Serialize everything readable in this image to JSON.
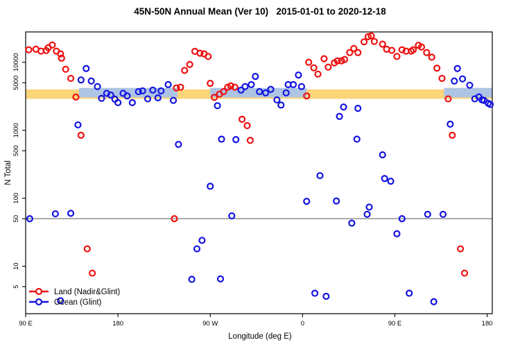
{
  "chart_data": {
    "type": "scatter",
    "title": "45N-50N Annual Mean (Ver 10)   2015-01-01 to 2020-12-18",
    "xlabel": "Longitude (deg E)",
    "ylabel": "N Total",
    "x_axis": {
      "note": "longitude axis spans 450 deg, from 90E eastward through 180, 90W, 0, 90E to 180",
      "range_deg": [
        0,
        455
      ],
      "ticks": [
        {
          "d": 0,
          "label": "90 E"
        },
        {
          "d": 90,
          "label": "180"
        },
        {
          "d": 180,
          "label": "90 W"
        },
        {
          "d": 270,
          "label": "0"
        },
        {
          "d": 360,
          "label": "90 E"
        },
        {
          "d": 450,
          "label": "180"
        }
      ]
    },
    "y_axis": {
      "scale": "log",
      "range": [
        2,
        28000
      ],
      "ticks": [
        5,
        10,
        50,
        100,
        500,
        1000,
        5000,
        10000
      ]
    },
    "reference_line": {
      "value": 50,
      "color": "#999999"
    },
    "bands": {
      "orange": {
        "color": "#FAD57A",
        "value_low": 2900,
        "value_high": 4000,
        "segments_deg": [
          [
            0,
            455
          ]
        ]
      },
      "blue": {
        "color": "#ADC4E4",
        "value_low": 3050,
        "value_high": 4200,
        "segments_deg": [
          [
            52,
            148
          ],
          [
            180,
            274
          ],
          [
            408,
            455
          ]
        ]
      }
    },
    "legend": [
      {
        "label": "Land (Nadir&Glint)",
        "color": "#EE1111"
      },
      {
        "label": "Ocean (Glint)",
        "color": "#1414E1"
      }
    ],
    "series": [
      {
        "name": "Land (Nadir&Glint)",
        "color": "#EE1111",
        "points": [
          [
            3,
            15300
          ],
          [
            10,
            15600
          ],
          [
            15,
            14600
          ],
          [
            20,
            14900
          ],
          [
            22,
            16400
          ],
          [
            26,
            18000
          ],
          [
            30,
            14600
          ],
          [
            34,
            13300
          ],
          [
            35,
            11500
          ],
          [
            39,
            7900
          ],
          [
            44,
            5800
          ],
          [
            49,
            3080
          ],
          [
            54,
            845
          ],
          [
            60,
            18
          ],
          [
            65,
            7.9
          ],
          [
            145,
            50
          ],
          [
            147,
            4200
          ],
          [
            151,
            4300
          ],
          [
            155,
            7600
          ],
          [
            160,
            9300
          ],
          [
            165,
            14500
          ],
          [
            170,
            13600
          ],
          [
            174,
            13300
          ],
          [
            178,
            12200
          ],
          [
            180,
            4900
          ],
          [
            184,
            3050
          ],
          [
            189,
            3400
          ],
          [
            193,
            3700
          ],
          [
            197,
            4300
          ],
          [
            200,
            4500
          ],
          [
            204,
            4300
          ],
          [
            211,
            1450
          ],
          [
            216,
            1170
          ],
          [
            219,
            710
          ],
          [
            274,
            3200
          ],
          [
            276,
            10000
          ],
          [
            281,
            8300
          ],
          [
            285,
            6700
          ],
          [
            291,
            11300
          ],
          [
            295,
            8500
          ],
          [
            301,
            9800
          ],
          [
            304,
            10500
          ],
          [
            308,
            10500
          ],
          [
            311,
            11000
          ],
          [
            316,
            13900
          ],
          [
            320,
            16000
          ],
          [
            324,
            13900
          ],
          [
            330,
            20000
          ],
          [
            334,
            23800
          ],
          [
            337,
            24500
          ],
          [
            340,
            20300
          ],
          [
            348,
            18500
          ],
          [
            352,
            15600
          ],
          [
            357,
            15000
          ],
          [
            362,
            12200
          ],
          [
            367,
            15300
          ],
          [
            371,
            14600
          ],
          [
            376,
            14600
          ],
          [
            378,
            15300
          ],
          [
            383,
            17800
          ],
          [
            386,
            16800
          ],
          [
            391,
            13900
          ],
          [
            396,
            11900
          ],
          [
            401,
            8200
          ],
          [
            406,
            5800
          ],
          [
            412,
            2900
          ],
          [
            416,
            845
          ],
          [
            424,
            18
          ],
          [
            428,
            7.9
          ]
        ]
      },
      {
        "name": "Ocean (Glint)",
        "color": "#1414E1",
        "points": [
          [
            4,
            50
          ],
          [
            29,
            59
          ],
          [
            34,
            3.1
          ],
          [
            44,
            60
          ],
          [
            51,
            1200
          ],
          [
            54,
            5500
          ],
          [
            59,
            8100
          ],
          [
            64,
            5300
          ],
          [
            70,
            4400
          ],
          [
            74,
            2950
          ],
          [
            79,
            3500
          ],
          [
            83,
            3300
          ],
          [
            87,
            2870
          ],
          [
            90,
            2550
          ],
          [
            95,
            3500
          ],
          [
            99,
            3200
          ],
          [
            104,
            2550
          ],
          [
            110,
            3700
          ],
          [
            114,
            3800
          ],
          [
            119,
            2900
          ],
          [
            124,
            3900
          ],
          [
            129,
            3000
          ],
          [
            132,
            3800
          ],
          [
            139,
            4700
          ],
          [
            144,
            2750
          ],
          [
            149,
            620
          ],
          [
            162,
            6.4
          ],
          [
            167,
            18
          ],
          [
            172,
            24
          ],
          [
            180,
            150
          ],
          [
            187,
            2300
          ],
          [
            190,
            6.5
          ],
          [
            191,
            740
          ],
          [
            201,
            55
          ],
          [
            205,
            730
          ],
          [
            210,
            3900
          ],
          [
            214,
            4400
          ],
          [
            220,
            4700
          ],
          [
            224,
            6200
          ],
          [
            228,
            3700
          ],
          [
            234,
            3550
          ],
          [
            239,
            4000
          ],
          [
            245,
            2800
          ],
          [
            249,
            2350
          ],
          [
            254,
            3550
          ],
          [
            256,
            4700
          ],
          [
            261,
            4700
          ],
          [
            266,
            6500
          ],
          [
            269,
            4400
          ],
          [
            274,
            90
          ],
          [
            282,
            4
          ],
          [
            287,
            215
          ],
          [
            293,
            3.6
          ],
          [
            303,
            91
          ],
          [
            306,
            1600
          ],
          [
            310,
            2200
          ],
          [
            318,
            43
          ],
          [
            323,
            740
          ],
          [
            324,
            2100
          ],
          [
            333,
            58
          ],
          [
            335,
            74
          ],
          [
            348,
            435
          ],
          [
            350,
            195
          ],
          [
            356,
            178
          ],
          [
            362,
            30
          ],
          [
            367,
            50
          ],
          [
            374,
            4
          ],
          [
            392,
            58
          ],
          [
            398,
            3
          ],
          [
            407,
            58
          ],
          [
            414,
            1230
          ],
          [
            418,
            5300
          ],
          [
            421,
            8100
          ],
          [
            426,
            5700
          ],
          [
            433,
            4600
          ],
          [
            438,
            2900
          ],
          [
            442,
            3100
          ],
          [
            445,
            2800
          ],
          [
            447,
            2750
          ],
          [
            451,
            2500
          ],
          [
            453,
            2400
          ]
        ]
      }
    ]
  }
}
